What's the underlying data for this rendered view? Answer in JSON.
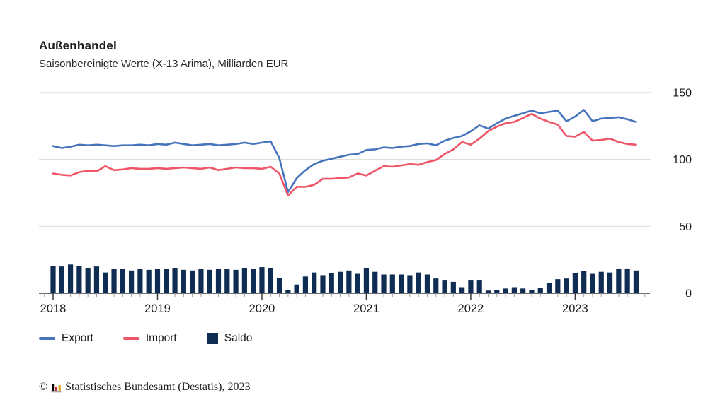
{
  "header": {
    "title": "Außenhandel",
    "subtitle": "Saisonbereinigte Werte (X-13 Arima), Milliarden EUR"
  },
  "legend": {
    "items": [
      {
        "label": "Export",
        "swatch": "line"
      },
      {
        "label": "Import",
        "swatch": "line"
      },
      {
        "label": "Saldo",
        "swatch": "square"
      }
    ]
  },
  "footer": {
    "copyright": "©",
    "source": "Statistisches Bundesamt (Destatis), 2023",
    "logo_colors": {
      "bar1": "#000000",
      "bar2": "#cc2229",
      "bar3": "#d8a416",
      "base": "#a6a6a6"
    }
  },
  "chart_data": {
    "type": "line+bar",
    "title": "Außenhandel",
    "subtitle": "Saisonbereinigte Werte (X-13 Arima), Milliarden EUR",
    "unit": "Milliarden EUR",
    "frequency": "monthly",
    "x_range": "2018-01 to 2023-08",
    "x_tick_labels": [
      "2018",
      "2019",
      "2020",
      "2021",
      "2022",
      "2023"
    ],
    "y_ticks": [
      0,
      50,
      100,
      150
    ],
    "ylim": [
      0,
      150
    ],
    "grid": "horizontal",
    "legend_position": "bottom-left",
    "colors": {
      "grid": "#d8d8d8",
      "axis": "#3a3a3a",
      "minor_tick": "#9a9a9a",
      "text": "#1a1a1a"
    },
    "series": [
      {
        "name": "Export",
        "type": "line",
        "color": "#4674bc",
        "values": [
          110.0,
          108.5,
          109.5,
          111.0,
          110.5,
          111.0,
          110.5,
          110.0,
          110.5,
          110.5,
          111.0,
          110.5,
          111.5,
          111.0,
          112.5,
          111.5,
          110.5,
          111.0,
          111.5,
          110.5,
          111.0,
          111.5,
          112.5,
          111.5,
          112.5,
          113.5,
          101.0,
          75.5,
          86.0,
          92.0,
          96.5,
          99.0,
          100.5,
          102.0,
          103.5,
          104.0,
          107.0,
          107.5,
          109.0,
          108.5,
          109.5,
          110.0,
          111.5,
          112.0,
          110.5,
          114.0,
          116.0,
          117.5,
          121.0,
          125.5,
          123.0,
          127.0,
          130.5,
          132.5,
          134.5,
          136.5,
          134.5,
          135.5,
          136.5,
          128.5,
          132.0,
          137.0,
          128.5,
          130.5,
          131.0,
          131.5,
          130.0,
          128.0
        ]
      },
      {
        "name": "Import",
        "type": "line",
        "color": "#ee5566",
        "values": [
          89.5,
          88.5,
          88.0,
          90.5,
          91.5,
          91.0,
          95.0,
          92.0,
          92.5,
          93.5,
          93.0,
          93.0,
          93.5,
          93.0,
          93.5,
          94.0,
          93.5,
          93.0,
          94.0,
          92.0,
          93.0,
          94.0,
          93.5,
          93.5,
          93.0,
          94.5,
          89.5,
          73.0,
          79.5,
          79.5,
          81.0,
          85.5,
          85.5,
          86.0,
          86.5,
          89.5,
          88.0,
          91.5,
          95.0,
          94.5,
          95.5,
          96.5,
          96.0,
          98.0,
          99.5,
          104.0,
          107.5,
          113.0,
          111.0,
          115.5,
          121.0,
          124.5,
          127.0,
          128.0,
          131.0,
          134.0,
          130.5,
          128.0,
          126.0,
          117.5,
          117.0,
          120.5,
          114.0,
          114.5,
          115.5,
          113.0,
          111.5,
          111.0
        ]
      },
      {
        "name": "Saldo",
        "type": "bar",
        "color": "#0f2d52",
        "values": [
          20.5,
          20.0,
          21.5,
          20.5,
          19.0,
          20.0,
          15.5,
          18.0,
          18.0,
          17.0,
          18.0,
          17.5,
          18.0,
          18.0,
          19.0,
          17.5,
          17.0,
          18.0,
          17.5,
          18.5,
          18.0,
          17.5,
          19.0,
          18.0,
          19.5,
          19.0,
          11.5,
          2.5,
          6.5,
          12.5,
          15.5,
          13.5,
          15.0,
          16.0,
          17.0,
          14.5,
          19.0,
          16.0,
          14.0,
          14.0,
          14.0,
          13.5,
          15.5,
          14.0,
          11.0,
          10.0,
          8.5,
          4.5,
          10.0,
          10.0,
          2.0,
          2.5,
          3.5,
          4.5,
          3.5,
          2.5,
          4.0,
          7.5,
          10.5,
          11.0,
          15.0,
          16.5,
          14.5,
          16.0,
          15.5,
          18.5,
          18.5,
          17.0
        ]
      }
    ]
  }
}
